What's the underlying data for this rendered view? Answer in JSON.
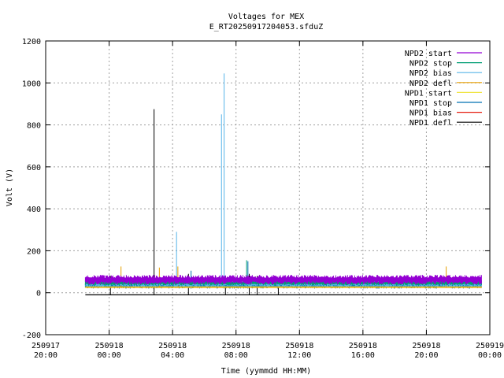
{
  "chart_data": {
    "type": "line",
    "title": "Voltages for MEX",
    "subtitle": "E_RT20250917204053.sfduZ",
    "xlabel": "Time (yymmdd HH:MM)",
    "ylabel": "Volt (V)",
    "ylim": [
      -200,
      1200
    ],
    "yticks": [
      -200,
      0,
      200,
      400,
      600,
      800,
      1000,
      1200
    ],
    "xlim": [
      "2025-09-17 20:00",
      "2025-09-19 00:00"
    ],
    "xticks": [
      {
        "x": "2025-09-17 20:00",
        "date": "250917",
        "time": "20:00"
      },
      {
        "x": "2025-09-18 00:00",
        "date": "250918",
        "time": "00:00"
      },
      {
        "x": "2025-09-18 04:00",
        "date": "250918",
        "time": "04:00"
      },
      {
        "x": "2025-09-18 08:00",
        "date": "250918",
        "time": "08:00"
      },
      {
        "x": "2025-09-18 12:00",
        "date": "250918",
        "time": "12:00"
      },
      {
        "x": "2025-09-18 16:00",
        "date": "250918",
        "time": "16:00"
      },
      {
        "x": "2025-09-18 20:00",
        "date": "250918",
        "time": "20:00"
      },
      {
        "x": "2025-09-19 00:00",
        "date": "250919",
        "time": "00:00"
      }
    ],
    "grid": true,
    "legend": "top-right",
    "series": [
      {
        "name": "NPD2 start",
        "color": "#9400d3",
        "x_range": [
          "2025-09-17 22:30",
          "2025-09-18 23:30"
        ],
        "low": 40,
        "high": 85
      },
      {
        "name": "NPD2 stop",
        "color": "#009e73",
        "x_range": [
          "2025-09-17 22:30",
          "2025-09-18 23:30"
        ],
        "low": 35,
        "high": 60,
        "spikes": [
          {
            "x": "2025-09-18 08:40",
            "y": 155
          }
        ]
      },
      {
        "name": "NPD2 bias",
        "color": "#56b4e9",
        "x_range": [
          "2025-09-17 22:30",
          "2025-09-18 23:30"
        ],
        "low": 30,
        "high": 50,
        "spikes": [
          {
            "x": "2025-09-18 04:15",
            "y": 290
          },
          {
            "x": "2025-09-18 07:05",
            "y": 850
          },
          {
            "x": "2025-09-18 07:15",
            "y": 1045
          }
        ]
      },
      {
        "name": "NPD2 defl",
        "color": "#e69f00",
        "x_range": [
          "2025-09-17 22:30",
          "2025-09-18 23:30"
        ],
        "value": 25,
        "spikes": [
          {
            "x": "2025-09-18 00:45",
            "y": 125
          },
          {
            "x": "2025-09-18 03:10",
            "y": 120
          },
          {
            "x": "2025-09-18 04:20",
            "y": 125
          },
          {
            "x": "2025-09-18 21:15",
            "y": 125
          }
        ]
      },
      {
        "name": "NPD1 start",
        "color": "#f0e442",
        "x_range": [
          "2025-09-17 22:30",
          "2025-09-18 23:30"
        ],
        "value": 28
      },
      {
        "name": "NPD1 stop",
        "color": "#0072b2",
        "x_range": [
          "2025-09-17 22:30",
          "2025-09-18 23:30"
        ],
        "low": 20,
        "high": 45,
        "spikes": [
          {
            "x": "2025-09-18 05:10",
            "y": 105
          },
          {
            "x": "2025-09-18 08:45",
            "y": 150
          }
        ]
      },
      {
        "name": "NPD1 bias",
        "color": "#e51e10",
        "x_range": [
          "2025-09-17 22:30",
          "2025-09-18 23:30"
        ],
        "value": 30
      },
      {
        "name": "NPD1 defl",
        "color": "#000000",
        "x_range": [
          "2025-09-17 22:30",
          "2025-09-18 23:30"
        ],
        "value": -10,
        "spikes": [
          {
            "x": "2025-09-18 00:05",
            "y": 80
          },
          {
            "x": "2025-09-18 02:50",
            "y": 875
          },
          {
            "x": "2025-09-18 05:00",
            "y": 90
          },
          {
            "x": "2025-09-18 07:20",
            "y": 80
          },
          {
            "x": "2025-09-18 08:50",
            "y": 90
          },
          {
            "x": "2025-09-18 09:20",
            "y": 80
          },
          {
            "x": "2025-09-18 10:40",
            "y": 65
          }
        ]
      }
    ]
  }
}
